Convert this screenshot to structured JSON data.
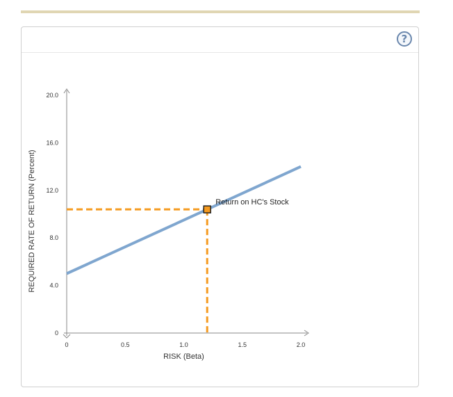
{
  "help": {
    "label": "?"
  },
  "chart_data": {
    "type": "line",
    "xlabel": "RISK (Beta)",
    "ylabel": "REQUIRED RATE OF RETURN (Percent)",
    "xlim": [
      0,
      2.0
    ],
    "ylim": [
      0,
      20.0
    ],
    "x_ticks": [
      0,
      0.5,
      1.0,
      1.5,
      2.0
    ],
    "x_tick_labels": [
      "0",
      "0.5",
      "1.0",
      "1.5",
      "2.0"
    ],
    "y_ticks": [
      0,
      4.0,
      8.0,
      12.0,
      16.0,
      20.0
    ],
    "y_tick_labels": [
      "0",
      "4.0",
      "8.0",
      "12.0",
      "16.0",
      "20.0"
    ],
    "series": [
      {
        "x": [
          0,
          2.0
        ],
        "y": [
          5.0,
          14.0
        ],
        "color": "#7fa6cf"
      }
    ],
    "point": {
      "label": "Return on HC's Stock",
      "x": 1.2,
      "y": 10.4,
      "fill": "#f59a1f",
      "guide_color": "#f59a1f"
    }
  }
}
